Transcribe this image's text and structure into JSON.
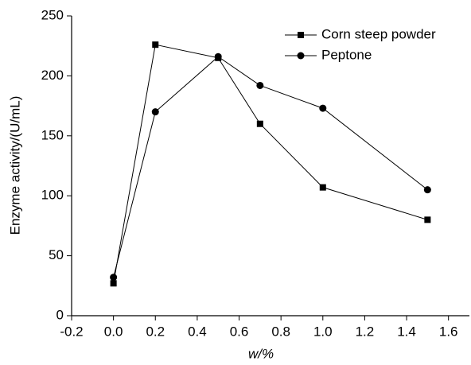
{
  "chart_data": {
    "type": "line",
    "x_label": "w/%",
    "y_label": "Enzyme activity/(U/mL)",
    "x": [
      0,
      0.2,
      0.5,
      0.7,
      1.0,
      1.5
    ],
    "series": [
      {
        "name": "Corn steep powder",
        "color": "#000000",
        "marker": "square",
        "values": [
          27,
          226,
          215,
          160,
          107,
          80
        ]
      },
      {
        "name": "Peptone",
        "color": "#000000",
        "marker": "circle",
        "values": [
          32,
          170,
          216,
          192,
          173,
          105
        ]
      }
    ],
    "xlim": [
      -0.2,
      1.7
    ],
    "xticks": [
      -0.2,
      {
        "value": 0,
        "label": "0.0"
      },
      0.2,
      0.4,
      0.6,
      0.8,
      {
        "value": 1,
        "label": "1.0"
      },
      1.2,
      1.4,
      1.6
    ],
    "ylim": [
      0,
      250
    ],
    "yticks": [
      0,
      50,
      100,
      150,
      200,
      250
    ],
    "grid": false,
    "legend": "top-right"
  }
}
